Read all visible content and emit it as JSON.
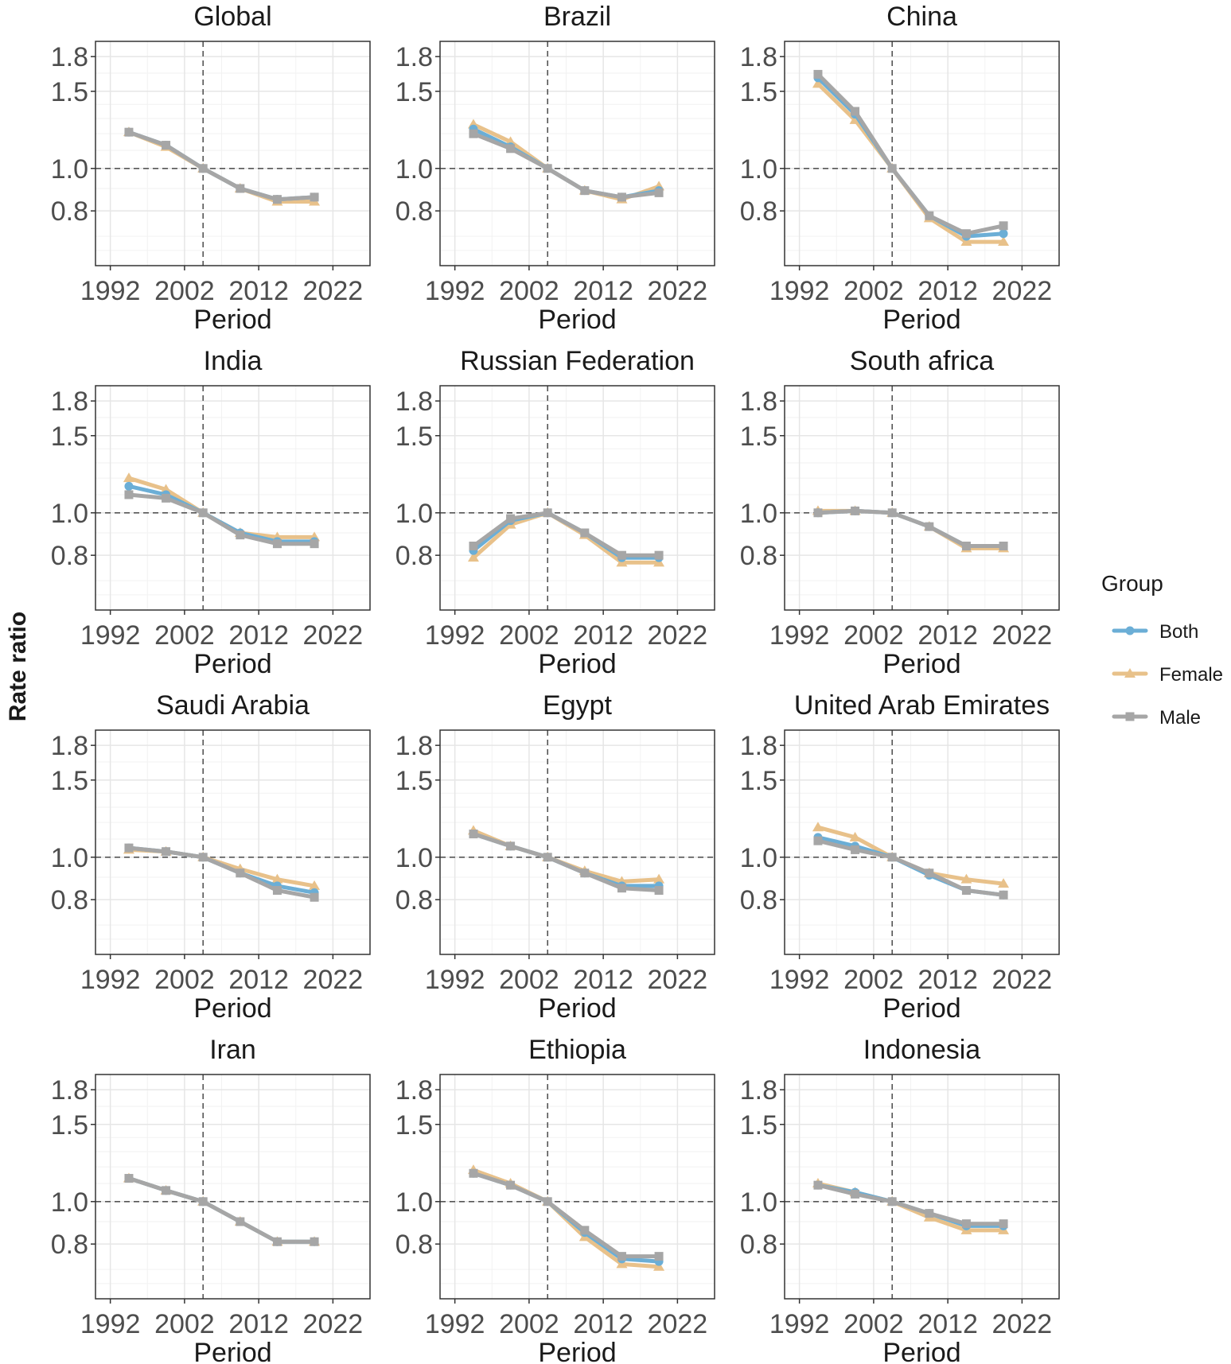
{
  "chart_data": {
    "type": "line",
    "ylabel": "Rate ratio",
    "xlabel": "Period",
    "x_ticks": [
      1992,
      2002,
      2012,
      2022
    ],
    "xlim": [
      1990,
      2027
    ],
    "y_ticks": [
      0.8,
      1.0,
      1.5,
      1.8
    ],
    "y_tick_labels": [
      "0.8",
      "1.0",
      "1.5",
      "1.8"
    ],
    "ylim": [
      0.6,
      1.95
    ],
    "y_scale": "log",
    "reference_year": 2004.5,
    "reference_ratio": 1.0,
    "x": [
      1994.5,
      1999.5,
      2004.5,
      2009.5,
      2014.5,
      2019.5
    ],
    "legend": {
      "title": "Group",
      "entries": [
        {
          "name": "Both",
          "color": "#6baed6",
          "marker": "circle"
        },
        {
          "name": "Female",
          "color": "#e8c18a",
          "marker": "triangle"
        },
        {
          "name": "Male",
          "color": "#a6a6a6",
          "marker": "square"
        }
      ]
    },
    "panels": [
      {
        "title": "Global",
        "series": {
          "Both": [
            1.21,
            1.13,
            1.0,
            0.9,
            0.85,
            0.86
          ],
          "Female": [
            1.21,
            1.12,
            1.0,
            0.9,
            0.84,
            0.84
          ],
          "Male": [
            1.21,
            1.13,
            1.0,
            0.9,
            0.85,
            0.86
          ]
        }
      },
      {
        "title": "Brazil",
        "series": {
          "Both": [
            1.23,
            1.12,
            1.0,
            0.89,
            0.86,
            0.89
          ],
          "Female": [
            1.26,
            1.15,
            1.0,
            0.89,
            0.85,
            0.91
          ],
          "Male": [
            1.2,
            1.11,
            1.0,
            0.89,
            0.86,
            0.88
          ]
        }
      },
      {
        "title": "China",
        "series": {
          "Both": [
            1.61,
            1.33,
            1.0,
            0.78,
            0.7,
            0.71
          ],
          "Female": [
            1.56,
            1.29,
            1.0,
            0.77,
            0.68,
            0.68
          ],
          "Male": [
            1.64,
            1.35,
            1.0,
            0.78,
            0.71,
            0.74
          ]
        }
      },
      {
        "title": "India",
        "series": {
          "Both": [
            1.15,
            1.1,
            1.0,
            0.9,
            0.86,
            0.86
          ],
          "Female": [
            1.2,
            1.13,
            1.0,
            0.9,
            0.88,
            0.88
          ],
          "Male": [
            1.1,
            1.08,
            1.0,
            0.89,
            0.85,
            0.85
          ]
        }
      },
      {
        "title": "Russian Federation",
        "series": {
          "Both": [
            0.82,
            0.96,
            1.0,
            0.9,
            0.79,
            0.79
          ],
          "Female": [
            0.79,
            0.94,
            1.0,
            0.89,
            0.77,
            0.77
          ],
          "Male": [
            0.84,
            0.97,
            1.0,
            0.9,
            0.8,
            0.8
          ]
        }
      },
      {
        "title": "South africa",
        "series": {
          "Both": [
            1.0,
            1.01,
            1.0,
            0.93,
            0.84,
            0.84
          ],
          "Female": [
            1.01,
            1.01,
            1.0,
            0.93,
            0.83,
            0.83
          ],
          "Male": [
            1.0,
            1.01,
            1.0,
            0.93,
            0.84,
            0.84
          ]
        }
      },
      {
        "title": "Saudi Arabia",
        "series": {
          "Both": [
            1.05,
            1.03,
            1.0,
            0.92,
            0.86,
            0.83
          ],
          "Female": [
            1.04,
            1.03,
            1.0,
            0.94,
            0.89,
            0.86
          ],
          "Male": [
            1.05,
            1.03,
            1.0,
            0.92,
            0.84,
            0.81
          ]
        }
      },
      {
        "title": "Egypt",
        "series": {
          "Both": [
            1.13,
            1.06,
            1.0,
            0.92,
            0.86,
            0.86
          ],
          "Female": [
            1.15,
            1.06,
            1.0,
            0.93,
            0.88,
            0.89
          ],
          "Male": [
            1.13,
            1.06,
            1.0,
            0.92,
            0.85,
            0.84
          ]
        }
      },
      {
        "title": "United Arab Emirates",
        "series": {
          "Both": [
            1.11,
            1.06,
            1.0,
            0.91,
            0.84,
            0.82
          ],
          "Female": [
            1.17,
            1.11,
            1.0,
            0.92,
            0.89,
            0.87
          ],
          "Male": [
            1.09,
            1.04,
            1.0,
            0.92,
            0.84,
            0.82
          ]
        }
      },
      {
        "title": "Iran",
        "series": {
          "Both": [
            1.13,
            1.06,
            1.0,
            0.9,
            0.81,
            0.81
          ],
          "Female": [
            1.13,
            1.06,
            1.0,
            0.9,
            0.81,
            0.81
          ],
          "Male": [
            1.13,
            1.06,
            1.0,
            0.9,
            0.81,
            0.81
          ]
        }
      },
      {
        "title": "Ethiopia",
        "series": {
          "Both": [
            1.16,
            1.09,
            1.0,
            0.85,
            0.74,
            0.73
          ],
          "Female": [
            1.18,
            1.1,
            1.0,
            0.83,
            0.72,
            0.71
          ],
          "Male": [
            1.16,
            1.09,
            1.0,
            0.86,
            0.75,
            0.75
          ]
        }
      },
      {
        "title": "Indonesia",
        "series": {
          "Both": [
            1.09,
            1.05,
            1.0,
            0.94,
            0.88,
            0.88
          ],
          "Female": [
            1.1,
            1.05,
            1.0,
            0.92,
            0.86,
            0.86
          ],
          "Male": [
            1.09,
            1.04,
            1.0,
            0.94,
            0.89,
            0.89
          ]
        }
      }
    ]
  }
}
